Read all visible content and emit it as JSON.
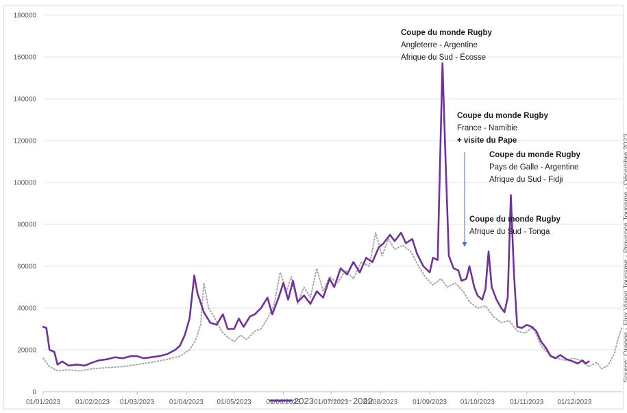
{
  "chart_data": {
    "type": "line",
    "ylim": [
      0,
      180000
    ],
    "y_ticks": [
      "0",
      "20000",
      "40000",
      "60000",
      "80000",
      "100000",
      "120000",
      "140000",
      "160000",
      "180000"
    ],
    "x_ticks": [
      "01/01/2023",
      "01/02/2023",
      "01/03/2023",
      "01/04/2023",
      "01/05/2023",
      "01/06/2023",
      "01/07/2023",
      "01/08/2023",
      "01/09/2023",
      "01/10/2023",
      "01/11/2023",
      "01/12/2023"
    ],
    "x_range": [
      "2023-01-01",
      "2023-12-31"
    ],
    "grid": true,
    "legend_position": "bottom",
    "series": [
      {
        "name": "2023",
        "color": "#7030a0",
        "style": "solid",
        "points": [
          [
            "2023-01-01",
            31000
          ],
          [
            "2023-01-03",
            30500
          ],
          [
            "2023-01-05",
            20000
          ],
          [
            "2023-01-08",
            19000
          ],
          [
            "2023-01-10",
            13000
          ],
          [
            "2023-01-13",
            14500
          ],
          [
            "2023-01-17",
            12500
          ],
          [
            "2023-01-22",
            13000
          ],
          [
            "2023-01-27",
            12500
          ],
          [
            "2023-02-01",
            14000
          ],
          [
            "2023-02-05",
            15000
          ],
          [
            "2023-02-10",
            15500
          ],
          [
            "2023-02-15",
            16500
          ],
          [
            "2023-02-20",
            16000
          ],
          [
            "2023-02-25",
            17000
          ],
          [
            "2023-03-01",
            17000
          ],
          [
            "2023-03-05",
            16000
          ],
          [
            "2023-03-10",
            16500
          ],
          [
            "2023-03-15",
            17000
          ],
          [
            "2023-03-20",
            18000
          ],
          [
            "2023-03-25",
            20000
          ],
          [
            "2023-03-28",
            22000
          ],
          [
            "2023-03-31",
            27000
          ],
          [
            "2023-04-03",
            35000
          ],
          [
            "2023-04-06",
            55500
          ],
          [
            "2023-04-08",
            47000
          ],
          [
            "2023-04-12",
            38000
          ],
          [
            "2023-04-16",
            33000
          ],
          [
            "2023-04-20",
            32000
          ],
          [
            "2023-04-24",
            37000
          ],
          [
            "2023-04-27",
            30000
          ],
          [
            "2023-05-01",
            30000
          ],
          [
            "2023-05-04",
            35000
          ],
          [
            "2023-05-07",
            31000
          ],
          [
            "2023-05-11",
            36000
          ],
          [
            "2023-05-14",
            37000
          ],
          [
            "2023-05-18",
            40000
          ],
          [
            "2023-05-22",
            45000
          ],
          [
            "2023-05-25",
            37000
          ],
          [
            "2023-05-29",
            45000
          ],
          [
            "2023-06-01",
            52000
          ],
          [
            "2023-06-04",
            44000
          ],
          [
            "2023-06-07",
            53000
          ],
          [
            "2023-06-10",
            43000
          ],
          [
            "2023-06-14",
            46000
          ],
          [
            "2023-06-18",
            42000
          ],
          [
            "2023-06-22",
            48000
          ],
          [
            "2023-06-26",
            45000
          ],
          [
            "2023-06-30",
            54000
          ],
          [
            "2023-07-03",
            50000
          ],
          [
            "2023-07-07",
            59000
          ],
          [
            "2023-07-11",
            56000
          ],
          [
            "2023-07-15",
            62000
          ],
          [
            "2023-07-19",
            57000
          ],
          [
            "2023-07-23",
            64000
          ],
          [
            "2023-07-27",
            62000
          ],
          [
            "2023-07-31",
            69000
          ],
          [
            "2023-08-03",
            71000
          ],
          [
            "2023-08-07",
            75000
          ],
          [
            "2023-08-10",
            72000
          ],
          [
            "2023-08-14",
            76000
          ],
          [
            "2023-08-17",
            71000
          ],
          [
            "2023-08-21",
            73000
          ],
          [
            "2023-08-24",
            66000
          ],
          [
            "2023-08-28",
            60000
          ],
          [
            "2023-09-01",
            57000
          ],
          [
            "2023-09-03",
            64000
          ],
          [
            "2023-09-06",
            63000
          ],
          [
            "2023-09-09",
            157000
          ],
          [
            "2023-09-11",
            110000
          ],
          [
            "2023-09-13",
            65000
          ],
          [
            "2023-09-16",
            59000
          ],
          [
            "2023-09-19",
            58000
          ],
          [
            "2023-09-21",
            53000
          ],
          [
            "2023-09-24",
            54000
          ],
          [
            "2023-09-26",
            60000
          ],
          [
            "2023-09-29",
            50000
          ],
          [
            "2023-10-01",
            46000
          ],
          [
            "2023-10-04",
            44000
          ],
          [
            "2023-10-06",
            49000
          ],
          [
            "2023-10-08",
            67000
          ],
          [
            "2023-10-10",
            50000
          ],
          [
            "2023-10-13",
            44000
          ],
          [
            "2023-10-16",
            40000
          ],
          [
            "2023-10-18",
            38000
          ],
          [
            "2023-10-20",
            45000
          ],
          [
            "2023-10-22",
            94000
          ],
          [
            "2023-10-24",
            56000
          ],
          [
            "2023-10-26",
            31000
          ],
          [
            "2023-10-29",
            30500
          ],
          [
            "2023-11-01",
            32000
          ],
          [
            "2023-11-04",
            31000
          ],
          [
            "2023-11-07",
            29000
          ],
          [
            "2023-11-10",
            24000
          ],
          [
            "2023-11-13",
            21000
          ],
          [
            "2023-11-16",
            17000
          ],
          [
            "2023-11-19",
            16000
          ],
          [
            "2023-11-22",
            17500
          ],
          [
            "2023-11-26",
            15500
          ],
          [
            "2023-11-30",
            14500
          ],
          [
            "2023-12-03",
            13500
          ],
          [
            "2023-12-06",
            15000
          ],
          [
            "2023-12-08",
            13500
          ],
          [
            "2023-12-10",
            14500
          ]
        ]
      },
      {
        "name": "2022",
        "color": "#a6a6a6",
        "style": "dotted",
        "points": [
          [
            "2023-01-01",
            16000
          ],
          [
            "2023-01-05",
            12000
          ],
          [
            "2023-01-10",
            10000
          ],
          [
            "2023-01-17",
            10500
          ],
          [
            "2023-01-24",
            10000
          ],
          [
            "2023-02-01",
            11000
          ],
          [
            "2023-02-10",
            11500
          ],
          [
            "2023-02-20",
            12000
          ],
          [
            "2023-03-01",
            13000
          ],
          [
            "2023-03-10",
            14000
          ],
          [
            "2023-03-20",
            15500
          ],
          [
            "2023-03-28",
            17000
          ],
          [
            "2023-04-03",
            20000
          ],
          [
            "2023-04-07",
            25000
          ],
          [
            "2023-04-10",
            32000
          ],
          [
            "2023-04-12",
            52000
          ],
          [
            "2023-04-15",
            40000
          ],
          [
            "2023-04-19",
            35000
          ],
          [
            "2023-04-23",
            29000
          ],
          [
            "2023-04-27",
            26000
          ],
          [
            "2023-05-01",
            24000
          ],
          [
            "2023-05-05",
            27000
          ],
          [
            "2023-05-09",
            25000
          ],
          [
            "2023-05-14",
            29000
          ],
          [
            "2023-05-18",
            30000
          ],
          [
            "2023-05-22",
            35000
          ],
          [
            "2023-05-26",
            41000
          ],
          [
            "2023-05-30",
            57000
          ],
          [
            "2023-06-03",
            48000
          ],
          [
            "2023-06-06",
            55000
          ],
          [
            "2023-06-10",
            42000
          ],
          [
            "2023-06-14",
            50000
          ],
          [
            "2023-06-18",
            45000
          ],
          [
            "2023-06-22",
            59000
          ],
          [
            "2023-06-26",
            48000
          ],
          [
            "2023-06-30",
            55000
          ],
          [
            "2023-07-05",
            52000
          ],
          [
            "2023-07-10",
            58000
          ],
          [
            "2023-07-15",
            54000
          ],
          [
            "2023-07-20",
            62000
          ],
          [
            "2023-07-25",
            60000
          ],
          [
            "2023-07-29",
            76000
          ],
          [
            "2023-08-02",
            65000
          ],
          [
            "2023-08-06",
            73000
          ],
          [
            "2023-08-10",
            68000
          ],
          [
            "2023-08-15",
            70000
          ],
          [
            "2023-08-20",
            67000
          ],
          [
            "2023-08-25",
            60000
          ],
          [
            "2023-08-29",
            55000
          ],
          [
            "2023-09-03",
            51000
          ],
          [
            "2023-09-08",
            54000
          ],
          [
            "2023-09-12",
            50000
          ],
          [
            "2023-09-17",
            52000
          ],
          [
            "2023-09-22",
            48000
          ],
          [
            "2023-09-26",
            43000
          ],
          [
            "2023-10-01",
            40000
          ],
          [
            "2023-10-06",
            41000
          ],
          [
            "2023-10-11",
            36000
          ],
          [
            "2023-10-16",
            33000
          ],
          [
            "2023-10-21",
            34000
          ],
          [
            "2023-10-26",
            29000
          ],
          [
            "2023-10-31",
            28000
          ],
          [
            "2023-11-05",
            31000
          ],
          [
            "2023-11-10",
            22000
          ],
          [
            "2023-11-15",
            18000
          ],
          [
            "2023-11-20",
            16000
          ],
          [
            "2023-11-25",
            15000
          ],
          [
            "2023-11-30",
            16000
          ],
          [
            "2023-12-05",
            15000
          ],
          [
            "2023-12-10",
            12000
          ],
          [
            "2023-12-15",
            14000
          ],
          [
            "2023-12-18",
            11000
          ],
          [
            "2023-12-22",
            12500
          ],
          [
            "2023-12-26",
            18000
          ],
          [
            "2023-12-29",
            27000
          ],
          [
            "2023-12-31",
            31000
          ]
        ]
      }
    ],
    "annotations": [
      {
        "lines": [
          {
            "text": "Coupe du monde Rugby",
            "bold": true
          },
          {
            "text": "Angleterre - Argentine",
            "bold": false
          },
          {
            "text": "Afrique du Sud - Écosse",
            "bold": false
          }
        ]
      },
      {
        "lines": [
          {
            "text": "Coupe du monde Rugby",
            "bold": true
          },
          {
            "text": "France - Namibie",
            "bold": false
          },
          {
            "text": "+ visite du Pape",
            "bold": true
          }
        ]
      },
      {
        "lines": [
          {
            "text": "Coupe du monde Rugby",
            "bold": true
          },
          {
            "text": "Pays de Galle - Argentine",
            "bold": false
          },
          {
            "text": "Afrique du  Sud - Fidji",
            "bold": false
          }
        ]
      },
      {
        "lines": [
          {
            "text": "Coupe du monde Rugby",
            "bold": true
          },
          {
            "text": "Afrique du Sud - Tonga",
            "bold": false
          }
        ]
      }
    ],
    "arrow_color": "#4472c4",
    "source_note": "Source: Orange - Flux Vision Tourisme - Provence Tourisme - Décembre 2023"
  },
  "legend": {
    "items": [
      {
        "label": "2023",
        "color": "#7030a0",
        "style": "solid"
      },
      {
        "label": "2022",
        "color": "#a6a6a6",
        "style": "dotted"
      }
    ]
  }
}
